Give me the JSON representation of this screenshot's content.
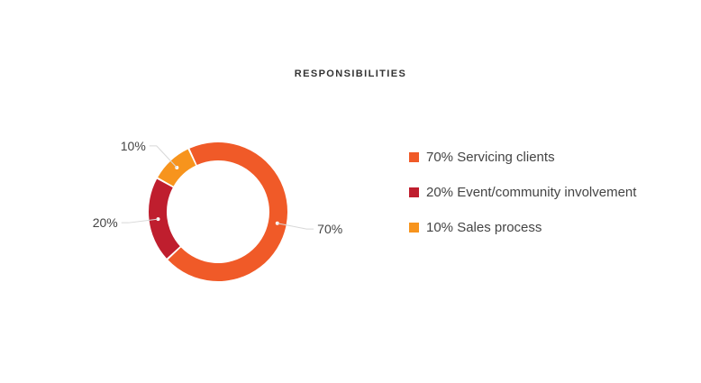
{
  "chart_data": {
    "type": "pie",
    "variant": "donut",
    "title": "RESPONSIBILITIES",
    "categories": [
      "Servicing clients",
      "Event/community involvement",
      "Sales process"
    ],
    "values": [
      70,
      20,
      10
    ],
    "unit": "%",
    "colors": [
      "#f05a28",
      "#bf1e2e",
      "#f7941d"
    ],
    "data_labels": [
      "70%",
      "20%",
      "10%"
    ],
    "legend": {
      "position": "right",
      "entries": [
        "70% Servicing clients",
        "20% Event/community involvement",
        "10% Sales process"
      ]
    }
  }
}
